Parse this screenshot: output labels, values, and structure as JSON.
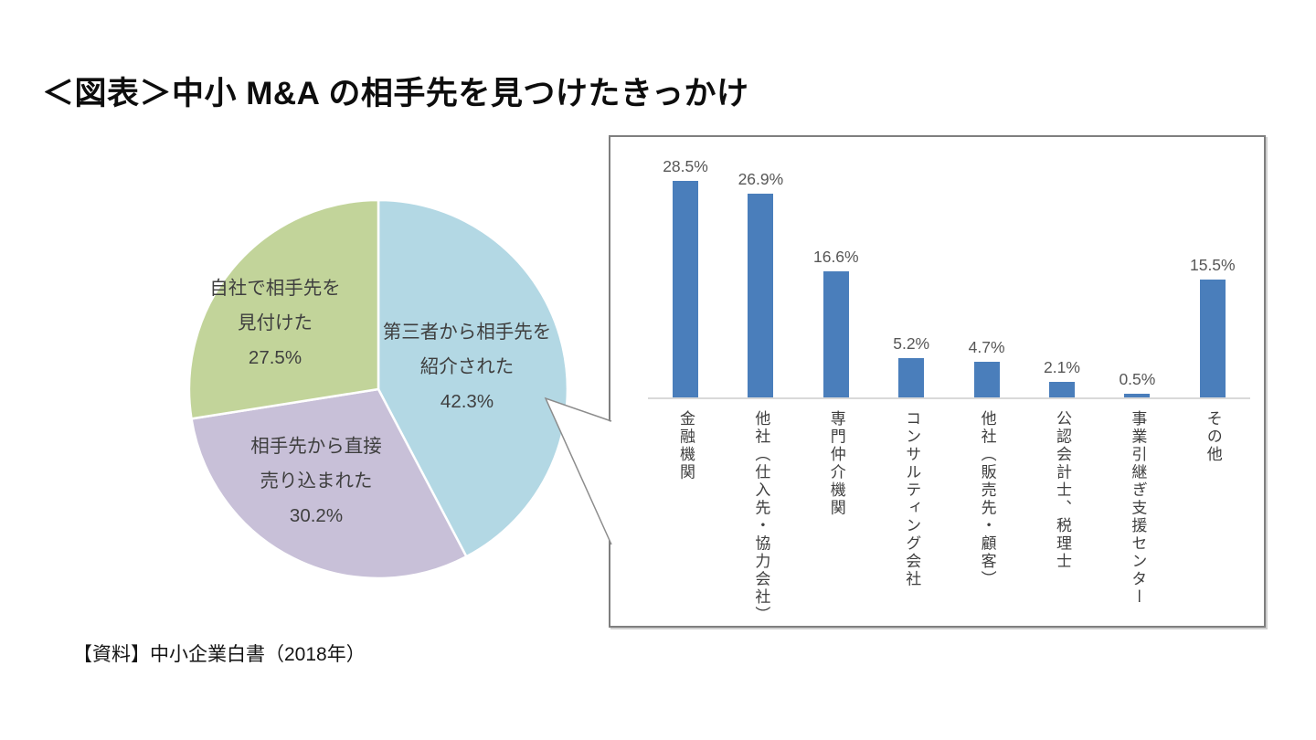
{
  "header": {
    "title": "＜図表＞中小 M&A の相手先を見つけたきっかけ"
  },
  "footer": {
    "source": "【資料】中小企業白書（2018年）"
  },
  "colors": {
    "pie_referred": "#b3d8e4",
    "pie_direct": "#c8c0d8",
    "pie_self": "#c2d49a",
    "bar": "#4a7ebb",
    "axis": "#d9d9d9",
    "panel_border": "#7f7f7f",
    "callout_line": "#8c8c8c",
    "text_dark": "#3f3f3f"
  },
  "chart_data": [
    {
      "type": "pie",
      "start_angle_deg": 0,
      "direction": "clockwise",
      "legend": "none",
      "slices": [
        {
          "label": "第三者から相手先を紹介された",
          "label_lines": [
            "第三者から相手先を",
            "紹介された"
          ],
          "value": 42.3,
          "value_label": "42.3%",
          "color": "pie_referred"
        },
        {
          "label": "相手先から直接売り込まれた",
          "label_lines": [
            "相手先から直接",
            "売り込まれた"
          ],
          "value": 30.2,
          "value_label": "30.2%",
          "color": "pie_direct"
        },
        {
          "label": "自社で相手先を見付けた",
          "label_lines": [
            "自社で相手先を",
            "見付けた"
          ],
          "value": 27.5,
          "value_label": "27.5%",
          "color": "pie_self"
        }
      ],
      "callout": {
        "from_slice": "第三者から相手先を紹介された",
        "to": "bar-chart-panel"
      }
    },
    {
      "type": "bar",
      "categories": [
        "金融機関",
        "他社（仕入先・協力会社）",
        "専門仲介機関",
        "コンサルティング会社",
        "他社（販売先・顧客）",
        "公認会計士、税理士",
        "事業引継ぎ支援センター",
        "その他"
      ],
      "values": [
        28.5,
        26.9,
        16.6,
        5.2,
        4.7,
        2.1,
        0.5,
        15.5
      ],
      "value_labels": [
        "28.5%",
        "26.9%",
        "16.6%",
        "5.2%",
        "4.7%",
        "2.1%",
        "0.5%",
        "15.5%"
      ],
      "xlabel": "",
      "ylabel": "",
      "ylim": [
        0,
        30
      ],
      "grid": false,
      "legend": "none",
      "category_label_orientation": "vertical"
    }
  ]
}
